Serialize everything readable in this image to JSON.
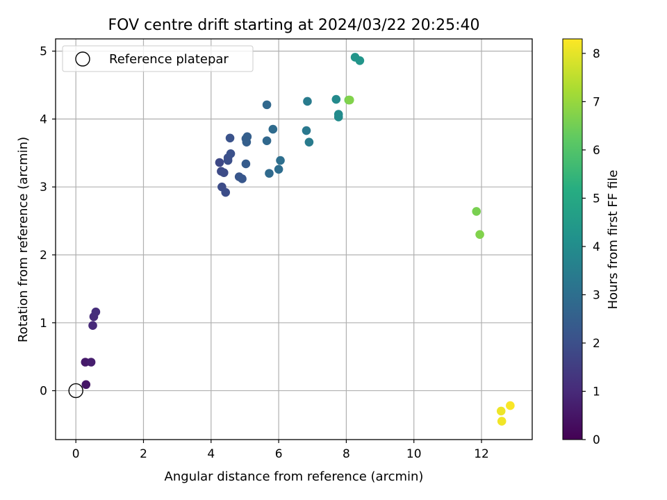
{
  "chart_data": {
    "type": "scatter",
    "title": "FOV centre drift starting at 2024/03/22 20:25:40",
    "xlabel": "Angular distance from reference (arcmin)",
    "ylabel": "Rotation from reference (arcmin)",
    "xlim": [
      -0.6,
      13.5
    ],
    "ylim": [
      -0.72,
      5.18
    ],
    "xticks": [
      0,
      2,
      4,
      6,
      8,
      10,
      12
    ],
    "yticks": [
      0,
      1,
      2,
      3,
      4,
      5
    ],
    "grid": true,
    "legend": {
      "placement": "top-left",
      "entries": [
        "Reference platepar"
      ]
    },
    "reference_point": {
      "x": 0,
      "y": 0,
      "label": "Reference platepar"
    },
    "colorbar": {
      "label": "Hours from first FF file",
      "colormap": "viridis",
      "min": 0,
      "max": 8.3,
      "ticks": [
        0,
        1,
        2,
        3,
        4,
        5,
        6,
        7,
        8
      ]
    },
    "points": [
      {
        "x": 0.3,
        "y": 0.09,
        "c": 0.5
      },
      {
        "x": 0.28,
        "y": 0.42,
        "c": 0.6
      },
      {
        "x": 0.45,
        "y": 0.42,
        "c": 0.7
      },
      {
        "x": 0.5,
        "y": 0.96,
        "c": 1.0
      },
      {
        "x": 0.53,
        "y": 1.09,
        "c": 1.05
      },
      {
        "x": 0.59,
        "y": 1.16,
        "c": 1.1
      },
      {
        "x": 4.25,
        "y": 3.36,
        "c": 1.8
      },
      {
        "x": 4.3,
        "y": 3.23,
        "c": 1.85
      },
      {
        "x": 4.38,
        "y": 3.21,
        "c": 1.9
      },
      {
        "x": 4.32,
        "y": 3.0,
        "c": 1.9
      },
      {
        "x": 4.43,
        "y": 2.92,
        "c": 1.95
      },
      {
        "x": 4.5,
        "y": 3.43,
        "c": 2.0
      },
      {
        "x": 4.5,
        "y": 3.39,
        "c": 2.0
      },
      {
        "x": 4.58,
        "y": 3.49,
        "c": 2.05
      },
      {
        "x": 4.56,
        "y": 3.72,
        "c": 2.1
      },
      {
        "x": 4.83,
        "y": 3.15,
        "c": 2.2
      },
      {
        "x": 4.92,
        "y": 3.12,
        "c": 2.25
      },
      {
        "x": 5.03,
        "y": 3.34,
        "c": 2.4
      },
      {
        "x": 5.03,
        "y": 3.71,
        "c": 2.45
      },
      {
        "x": 5.05,
        "y": 3.66,
        "c": 2.5
      },
      {
        "x": 5.07,
        "y": 3.74,
        "c": 2.5
      },
      {
        "x": 5.65,
        "y": 4.21,
        "c": 2.8
      },
      {
        "x": 5.65,
        "y": 3.68,
        "c": 2.8
      },
      {
        "x": 5.72,
        "y": 3.2,
        "c": 2.85
      },
      {
        "x": 5.83,
        "y": 3.85,
        "c": 2.9
      },
      {
        "x": 6.0,
        "y": 3.26,
        "c": 2.95
      },
      {
        "x": 6.05,
        "y": 3.39,
        "c": 3.0
      },
      {
        "x": 6.82,
        "y": 3.83,
        "c": 3.3
      },
      {
        "x": 6.85,
        "y": 4.26,
        "c": 3.4
      },
      {
        "x": 6.9,
        "y": 3.66,
        "c": 3.4
      },
      {
        "x": 7.7,
        "y": 4.29,
        "c": 3.9
      },
      {
        "x": 7.77,
        "y": 4.07,
        "c": 3.95
      },
      {
        "x": 7.77,
        "y": 4.03,
        "c": 3.95
      },
      {
        "x": 8.07,
        "y": 4.28,
        "c": 6.5
      },
      {
        "x": 8.1,
        "y": 4.28,
        "c": 6.7
      },
      {
        "x": 8.26,
        "y": 4.91,
        "c": 4.3
      },
      {
        "x": 8.4,
        "y": 4.86,
        "c": 4.3
      },
      {
        "x": 11.85,
        "y": 2.64,
        "c": 6.6
      },
      {
        "x": 11.95,
        "y": 2.3,
        "c": 6.7
      },
      {
        "x": 12.58,
        "y": -0.3,
        "c": 8.1
      },
      {
        "x": 12.6,
        "y": -0.45,
        "c": 8.15
      },
      {
        "x": 12.85,
        "y": -0.22,
        "c": 8.25
      }
    ]
  }
}
